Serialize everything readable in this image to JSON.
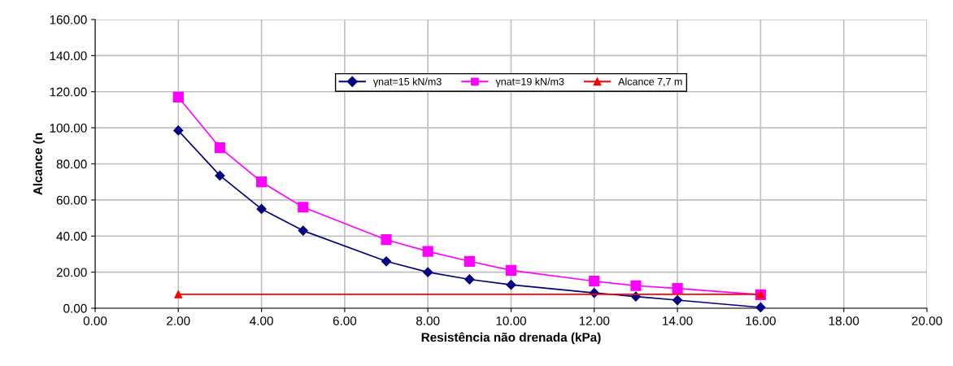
{
  "chart_data": {
    "type": "line",
    "xlabel": "Resistência não drenada (kPa)",
    "ylabel": "Alcance (n",
    "xlim": [
      0,
      20
    ],
    "xticks": [
      {
        "value": 0,
        "label": "0.00"
      },
      {
        "value": 2,
        "label": "2.00"
      },
      {
        "value": 4,
        "label": "4.00"
      },
      {
        "value": 6,
        "label": "6.00"
      },
      {
        "value": 8,
        "label": "8.00"
      },
      {
        "value": 10,
        "label": "10.00"
      },
      {
        "value": 12,
        "label": "12.00"
      },
      {
        "value": 14,
        "label": "14.00"
      },
      {
        "value": 16,
        "label": "16.00"
      },
      {
        "value": 18,
        "label": "18.00"
      },
      {
        "value": 20,
        "label": "20.00"
      }
    ],
    "ylim": [
      0,
      160
    ],
    "yticks": [
      {
        "value": 0,
        "label": "0.00"
      },
      {
        "value": 20,
        "label": "20.00"
      },
      {
        "value": 40,
        "label": "40.00"
      },
      {
        "value": 60,
        "label": "60.00"
      },
      {
        "value": 80,
        "label": "80.00"
      },
      {
        "value": 100,
        "label": "100.00"
      },
      {
        "value": 120,
        "label": "120.00"
      },
      {
        "value": 140,
        "label": "140.00"
      },
      {
        "value": 160,
        "label": "160.00"
      }
    ],
    "grid": true,
    "legend": "top",
    "line_style": "solid",
    "series": [
      {
        "name": "γnat=15 kN/m3",
        "color": "#000080",
        "marker": "diamond",
        "x": [
          2,
          3,
          4,
          5,
          7,
          8,
          9,
          10,
          12,
          13,
          14,
          16
        ],
        "values": [
          98.5,
          73.5,
          55,
          43,
          26,
          20,
          16,
          13,
          8.5,
          6.5,
          4.5,
          0.5
        ]
      },
      {
        "name": "γnat=19 kN/m3",
        "color": "#ff00ff",
        "marker": "square",
        "x": [
          2,
          3,
          4,
          5,
          7,
          8,
          9,
          10,
          12,
          13,
          14,
          16
        ],
        "values": [
          117,
          89,
          70,
          56,
          38,
          31.5,
          26,
          21,
          15,
          12.5,
          11,
          7.5
        ]
      },
      {
        "name": "Alcance 7,7 m",
        "color": "#ff0000",
        "marker": "triangle",
        "x": [
          2,
          16
        ],
        "values": [
          7.7,
          7.7
        ]
      }
    ]
  }
}
